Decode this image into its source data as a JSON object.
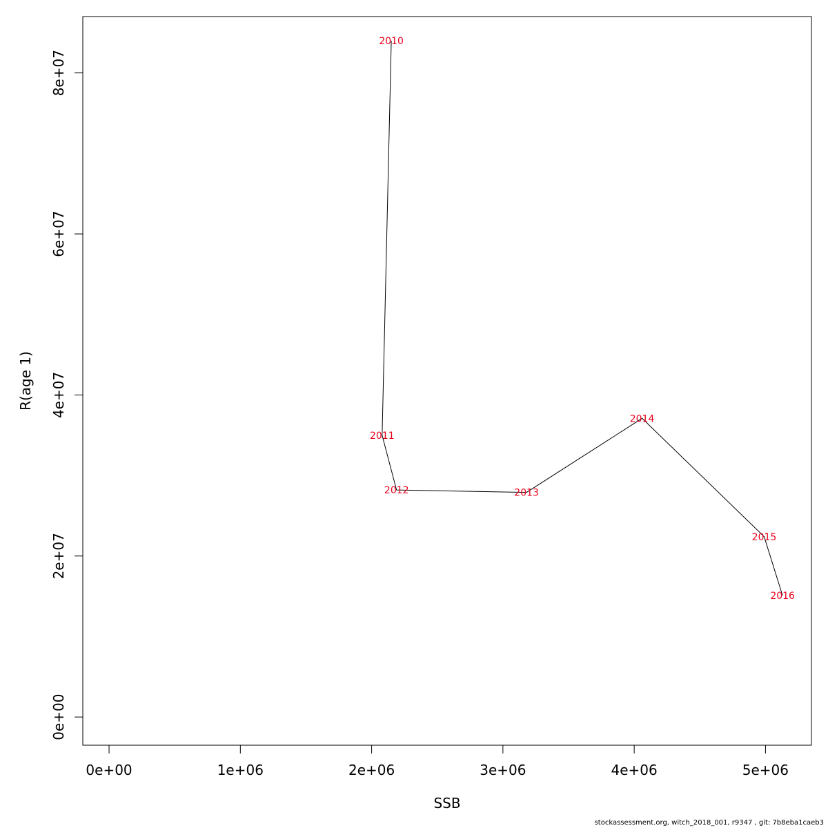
{
  "chart_data": {
    "type": "line",
    "title": "",
    "xlabel": "SSB",
    "ylabel": "R(age 1)",
    "xlim": [
      -200000,
      5350000
    ],
    "ylim": [
      -3500000,
      87000000
    ],
    "x_ticks": [
      {
        "value": 0,
        "label": "0e+00"
      },
      {
        "value": 1000000,
        "label": "1e+06"
      },
      {
        "value": 2000000,
        "label": "2e+06"
      },
      {
        "value": 3000000,
        "label": "3e+06"
      },
      {
        "value": 4000000,
        "label": "4e+06"
      },
      {
        "value": 5000000,
        "label": "5e+06"
      }
    ],
    "y_ticks": [
      {
        "value": 0,
        "label": "0e+00"
      },
      {
        "value": 20000000,
        "label": "2e+07"
      },
      {
        "value": 40000000,
        "label": "4e+07"
      },
      {
        "value": 60000000,
        "label": "6e+07"
      },
      {
        "value": 80000000,
        "label": "8e+07"
      }
    ],
    "grid": false,
    "line_color": "#000000",
    "label_color": "#e8001c",
    "points": [
      {
        "label": "2010",
        "x": 2150000,
        "y": 84000000
      },
      {
        "label": "2011",
        "x": 2080000,
        "y": 35000000
      },
      {
        "label": "2012",
        "x": 2190000,
        "y": 28200000
      },
      {
        "label": "2013",
        "x": 3180000,
        "y": 27900000
      },
      {
        "label": "2014",
        "x": 4060000,
        "y": 37100000
      },
      {
        "label": "2015",
        "x": 4990000,
        "y": 22400000
      },
      {
        "label": "2016",
        "x": 5130000,
        "y": 15100000
      }
    ]
  },
  "footer": "stockassessment.org, witch_2018_001, r9347 , git: 7b8eba1caeb3"
}
